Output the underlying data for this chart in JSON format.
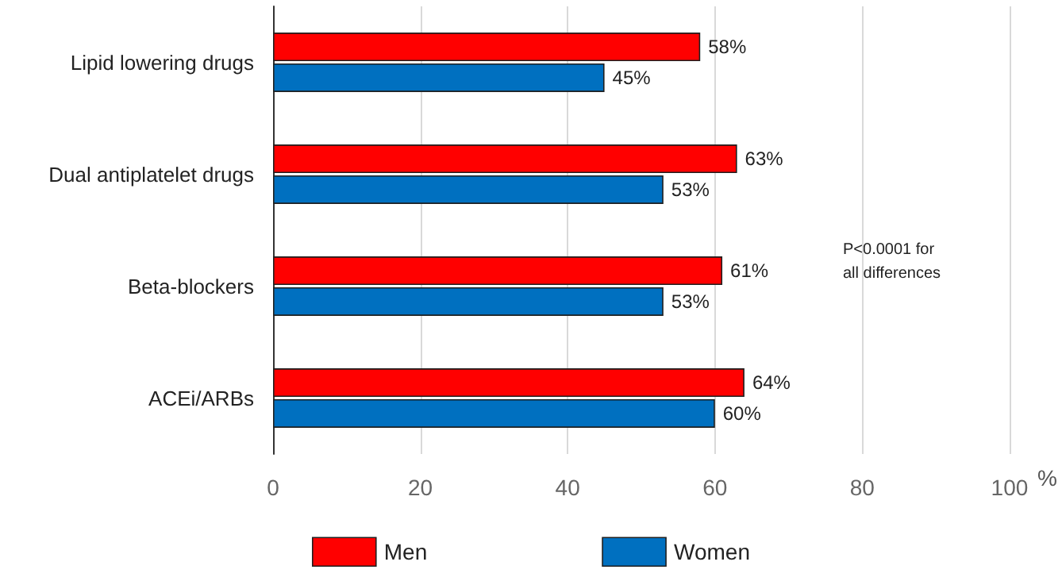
{
  "chart_data": {
    "type": "bar",
    "orientation": "horizontal",
    "xlabel": "%",
    "categories": [
      "Lipid lowering drugs",
      "Dual antiplatelet drugs",
      "Beta-blockers",
      "ACEi/ARBs"
    ],
    "series": [
      {
        "name": "Men",
        "color": "#ff0000",
        "values": [
          58,
          63,
          61,
          64
        ],
        "value_labels": [
          "58%",
          "63%",
          "61%",
          "64%"
        ]
      },
      {
        "name": "Women",
        "color": "#0070c0",
        "values": [
          45,
          53,
          53,
          60
        ],
        "value_labels": [
          "45%",
          "53%",
          "53%",
          "60%"
        ]
      }
    ],
    "xlim": [
      0,
      100
    ],
    "xticks": [
      0,
      20,
      40,
      60,
      80,
      100
    ],
    "grid": "x",
    "legend": "bottom",
    "annotations": [
      "P<0.0001 for all differences"
    ]
  }
}
